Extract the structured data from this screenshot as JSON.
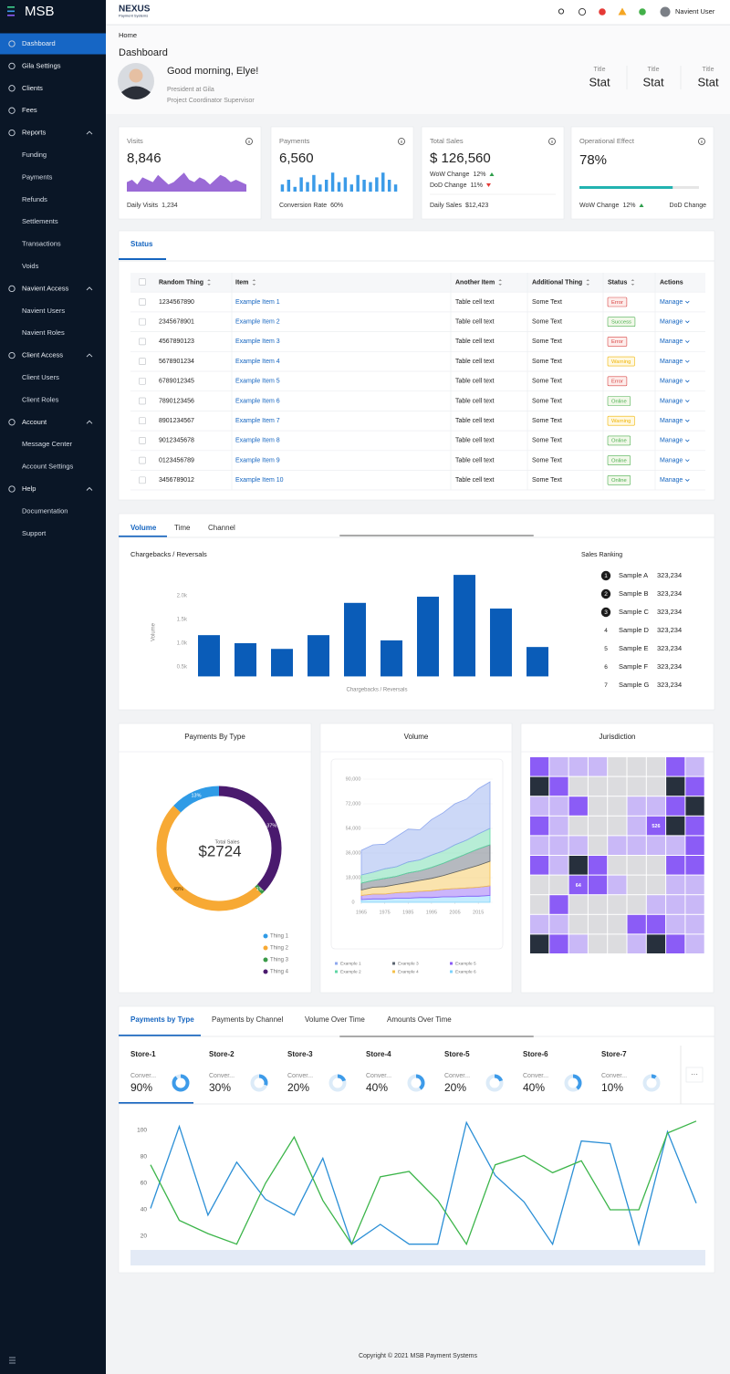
{
  "sidebar": {
    "logo": "MSB",
    "nav": [
      {
        "label": "Dashboard"
      },
      {
        "label": "Gila Settings"
      },
      {
        "label": "Clients"
      },
      {
        "label": "Fees"
      },
      {
        "label": "Reports",
        "children": [
          "Funding",
          "Payments",
          "Refunds",
          "Settlements",
          "Transactions",
          "Voids"
        ]
      },
      {
        "label": "Navient Access",
        "children": [
          "Navient Users",
          "Navient Roles"
        ]
      },
      {
        "label": "Client Access",
        "children": [
          "Client Users",
          "Client Roles"
        ]
      },
      {
        "label": "Account",
        "children": [
          "Message Center",
          "Account Settings"
        ]
      },
      {
        "label": "Help",
        "children": [
          "Documentation",
          "Support"
        ]
      }
    ]
  },
  "header": {
    "brand": "NEXUS",
    "brand_sub": "Payment Systems",
    "user": "Navient User"
  },
  "page_header": {
    "breadcrumb": "Home",
    "title": "Dashboard",
    "greeting": "Good morning, Elye!",
    "role": "President at Gila",
    "position": "Project Coordinator Supervisor",
    "stats": [
      {
        "title": "Title",
        "value": "Stat"
      },
      {
        "title": "Title",
        "value": "Stat"
      },
      {
        "title": "Title",
        "value": "Stat"
      }
    ]
  },
  "kpis": [
    {
      "label": "Visits",
      "value": "8,846",
      "sparkline": {
        "type": "area",
        "color": "#9a6ad6",
        "ylim": [
          0,
          10
        ],
        "values": [
          4,
          5,
          3,
          6,
          5,
          4,
          7,
          5,
          3,
          4,
          6,
          8,
          5,
          4,
          6,
          5,
          3,
          5,
          7,
          6,
          4,
          5,
          4,
          3
        ]
      },
      "footer_label": "Daily Visits",
      "footer_value": "1,234"
    },
    {
      "label": "Payments",
      "value": "6,560",
      "sparkline": {
        "type": "bar",
        "color": "#3b9be8",
        "ylim": [
          0,
          10
        ],
        "values": [
          3,
          5,
          2,
          6,
          4,
          7,
          3,
          5,
          8,
          4,
          6,
          3,
          7,
          5,
          4,
          6,
          8,
          5,
          3
        ]
      },
      "footer_label": "Conversion Rate",
      "footer_value": "60%"
    },
    {
      "label": "Total Sales",
      "value": "$ 126,560",
      "changes": [
        {
          "label": "WoW Change",
          "value": "12%",
          "direction": "up"
        },
        {
          "label": "DoD Change",
          "value": "11%",
          "direction": "down"
        }
      ],
      "footer_label": "Daily Sales",
      "footer_value": "$12,423"
    },
    {
      "label": "Operational Effect",
      "value": "78%",
      "progress": 78,
      "changes": [
        {
          "label": "WoW Change",
          "value": "12%",
          "direction": "up"
        }
      ],
      "footer_right": "DoD Change"
    }
  ],
  "status_panel": {
    "tab": "Status",
    "columns": [
      "Random Thing",
      "Item",
      "Another Item",
      "Additional Thing",
      "Status",
      "Actions"
    ],
    "rows": [
      [
        "1234567890",
        "Example Item 1",
        "Table cell text",
        "Some Text",
        "Error",
        "Manage"
      ],
      [
        "2345678901",
        "Example Item 2",
        "Table cell text",
        "Some Text",
        "Success",
        "Manage"
      ],
      [
        "4567890123",
        "Example Item 3",
        "Table cell text",
        "Some Text",
        "Error",
        "Manage"
      ],
      [
        "5678901234",
        "Example Item 4",
        "Table cell text",
        "Some Text",
        "Warning",
        "Manage"
      ],
      [
        "6789012345",
        "Example Item 5",
        "Table cell text",
        "Some Text",
        "Error",
        "Manage"
      ],
      [
        "7890123456",
        "Example Item 6",
        "Table cell text",
        "Some Text",
        "Online",
        "Manage"
      ],
      [
        "8901234567",
        "Example Item 7",
        "Table cell text",
        "Some Text",
        "Warning",
        "Manage"
      ],
      [
        "9012345678",
        "Example Item 8",
        "Table cell text",
        "Some Text",
        "Online",
        "Manage"
      ],
      [
        "0123456789",
        "Example Item 9",
        "Table cell text",
        "Some Text",
        "Online",
        "Manage"
      ],
      [
        "3456789012",
        "Example Item 10",
        "Table cell text",
        "Some Text",
        "Online",
        "Manage"
      ]
    ],
    "status_styles": {
      "Error": {
        "color": "#d84343",
        "background": "#fdecea"
      },
      "Success": {
        "color": "#4caf50",
        "background": "#f1f8e9"
      },
      "Warning": {
        "color": "#f0b400",
        "background": "#fff8e1"
      },
      "Online": {
        "color": "#4caf50",
        "background": "#f1f8e9"
      }
    }
  },
  "volume_panel": {
    "tabs": [
      "Volume",
      "Time",
      "Channel"
    ],
    "chart": {
      "type": "bar",
      "title": "Chargebacks / Reversals",
      "y_label": "Volume",
      "x_label": "Chargebacks / Reversals",
      "color": "#0a5cb8",
      "categories": [
        null,
        null,
        null,
        null,
        null,
        null,
        null,
        null,
        null,
        null
      ],
      "values": [
        1170,
        1000,
        880,
        1170,
        1850,
        1060,
        1980,
        2440,
        1730,
        920
      ],
      "ylim": [
        300,
        2500
      ],
      "yticks": [
        {
          "value": 500,
          "label": "0.5k"
        },
        {
          "value": 1000,
          "label": "1.0k"
        },
        {
          "value": 1500,
          "label": "1.5k"
        },
        {
          "value": 2000,
          "label": "2.0k"
        }
      ]
    },
    "ranking": {
      "title": "Sales Ranking",
      "items": [
        {
          "rank": 1,
          "name": "Sample A",
          "value": "323,234"
        },
        {
          "rank": 2,
          "name": "Sample B",
          "value": "323,234"
        },
        {
          "rank": 3,
          "name": "Sample C",
          "value": "323,234"
        },
        {
          "rank": 4,
          "name": "Sample D",
          "value": "323,234"
        },
        {
          "rank": 5,
          "name": "Sample E",
          "value": "323,234"
        },
        {
          "rank": 6,
          "name": "Sample F",
          "value": "323,234"
        },
        {
          "rank": 7,
          "name": "Sample G",
          "value": "323,234"
        }
      ]
    }
  },
  "payments_by_type": {
    "type": "pie",
    "title": "Payments By Type",
    "center_label": "Total Sales",
    "center_value": "$2724",
    "categories": [
      "Thing 1",
      "Thing 2",
      "Thing 3",
      "Thing 4"
    ],
    "values": [
      13,
      49,
      1,
      37
    ],
    "value_labels": [
      "13%",
      "49%",
      "1%",
      "37%"
    ],
    "colors": [
      "#2f9be6",
      "#f7a934",
      "#3a9a48",
      "#4a1a6e"
    ]
  },
  "volume": {
    "type": "area",
    "title": "Volume",
    "stacked": true,
    "x": [
      1965,
      1970,
      1975,
      1980,
      1985,
      1990,
      1995,
      2000,
      2005,
      2010,
      2015,
      2020
    ],
    "xlim": [
      1965,
      2020
    ],
    "xticks": [
      1965,
      1975,
      1985,
      1995,
      2005,
      2015
    ],
    "ylim": [
      0,
      90000
    ],
    "yticks": [
      0,
      {
        "value": 18000,
        "label": "18,000"
      },
      {
        "value": 36000,
        "label": "36,000"
      },
      {
        "value": 54000,
        "label": "54,000"
      },
      {
        "value": 72000,
        "label": "72,000"
      },
      {
        "value": 90000,
        "label": "90,000"
      }
    ],
    "series": [
      {
        "name": "Example 1",
        "color": "#8fa8ee",
        "values": [
          18000,
          20000,
          18000,
          22000,
          24000,
          22000,
          26000,
          28000,
          30000,
          30000,
          33000,
          34000
        ]
      },
      {
        "name": "Example 2",
        "color": "#5fd6a4",
        "values": [
          6000,
          6000,
          7000,
          7000,
          8000,
          8000,
          9000,
          9000,
          10000,
          10000,
          11000,
          12000
        ]
      },
      {
        "name": "Example 3",
        "color": "#5b6470",
        "values": [
          5000,
          5000,
          6000,
          6000,
          7000,
          7000,
          8000,
          9000,
          10000,
          11000,
          12000,
          12000
        ]
      },
      {
        "name": "Example 4",
        "color": "#f5c04a",
        "values": [
          4000,
          5000,
          5500,
          6000,
          7000,
          8000,
          9000,
          10000,
          12000,
          14000,
          16000,
          18000
        ]
      },
      {
        "name": "Example 5",
        "color": "#8b5cf6",
        "values": [
          3000,
          3500,
          3500,
          4000,
          4500,
          4500,
          5000,
          5500,
          6000,
          6000,
          6500,
          7000
        ]
      },
      {
        "name": "Example 6",
        "color": "#7dd3fc",
        "values": [
          2000,
          2500,
          2500,
          3000,
          3000,
          3500,
          3500,
          4000,
          4000,
          4500,
          4500,
          5000
        ]
      }
    ]
  },
  "jurisdiction": {
    "type": "heatmap",
    "title": "Jurisdiction",
    "palette": {
      "d": "#27303d",
      "p": "#8b5cf6",
      "l": "#c9b8f7",
      "g": "#dcdcdf"
    },
    "rows": [
      [
        "p",
        "l",
        "l",
        "l",
        "g",
        "g",
        "g",
        "p",
        "l"
      ],
      [
        "d",
        "p",
        "g",
        "g",
        "g",
        "g",
        "g",
        "d",
        "p"
      ],
      [
        "l",
        "l",
        "p",
        "g",
        "g",
        "l",
        "l",
        "p",
        "d"
      ],
      [
        "p",
        "l",
        "g",
        "g",
        "g",
        "l",
        {
          "code": "p",
          "value": 526
        },
        "d",
        "p"
      ],
      [
        "l",
        "l",
        "l",
        "g",
        "l",
        "l",
        "l",
        "l",
        "p"
      ],
      [
        "p",
        "l",
        "d",
        "p",
        "g",
        "g",
        "g",
        "p",
        "p"
      ],
      [
        "g",
        "g",
        {
          "code": "p",
          "value": 64
        },
        "p",
        "l",
        "g",
        "g",
        "l",
        "l"
      ],
      [
        "g",
        "p",
        "g",
        "g",
        "g",
        "g",
        "l",
        "l",
        "l"
      ],
      [
        "l",
        "l",
        "g",
        "g",
        "g",
        "p",
        "p",
        "l",
        "l"
      ],
      [
        "d",
        "p",
        "l",
        "g",
        "g",
        "l",
        "d",
        "p",
        "l"
      ]
    ]
  },
  "stores_panel": {
    "tabs": [
      "Payments by Type",
      "Payments by Channel",
      "Volume Over Time",
      "Amounts Over Time"
    ],
    "stores": [
      {
        "name": "Store-1",
        "label": "Conver...",
        "value": 90,
        "value_label": "90%"
      },
      {
        "name": "Store-2",
        "label": "Conver...",
        "value": 30,
        "value_label": "30%"
      },
      {
        "name": "Store-3",
        "label": "Conver...",
        "value": 20,
        "value_label": "20%"
      },
      {
        "name": "Store-4",
        "label": "Conver...",
        "value": 40,
        "value_label": "40%"
      },
      {
        "name": "Store-5",
        "label": "Conver...",
        "value": 20,
        "value_label": "20%"
      },
      {
        "name": "Store-6",
        "label": "Conver...",
        "value": 40,
        "value_label": "40%"
      },
      {
        "name": "Store-7",
        "label": "Conver...",
        "value": 10,
        "value_label": "10%"
      }
    ],
    "more": "···",
    "chart": {
      "type": "line",
      "ylim": [
        10,
        110
      ],
      "yticks": [
        20,
        40,
        60,
        80,
        100
      ],
      "series": [
        {
          "color": "#2b8fd6",
          "values": [
            41,
            103,
            36,
            76,
            48,
            36,
            79,
            14,
            29,
            14,
            14,
            106,
            66,
            46,
            14,
            92,
            90,
            14,
            99,
            45
          ]
        },
        {
          "color": "#3cb54a",
          "values": [
            74,
            32,
            22,
            14,
            60,
            95,
            47,
            14,
            65,
            69,
            47,
            14,
            74,
            81,
            68,
            77,
            40,
            40,
            98,
            107
          ]
        }
      ]
    }
  },
  "footer": {
    "copyright": "Copyright © 2021 MSB Payment Systems"
  }
}
